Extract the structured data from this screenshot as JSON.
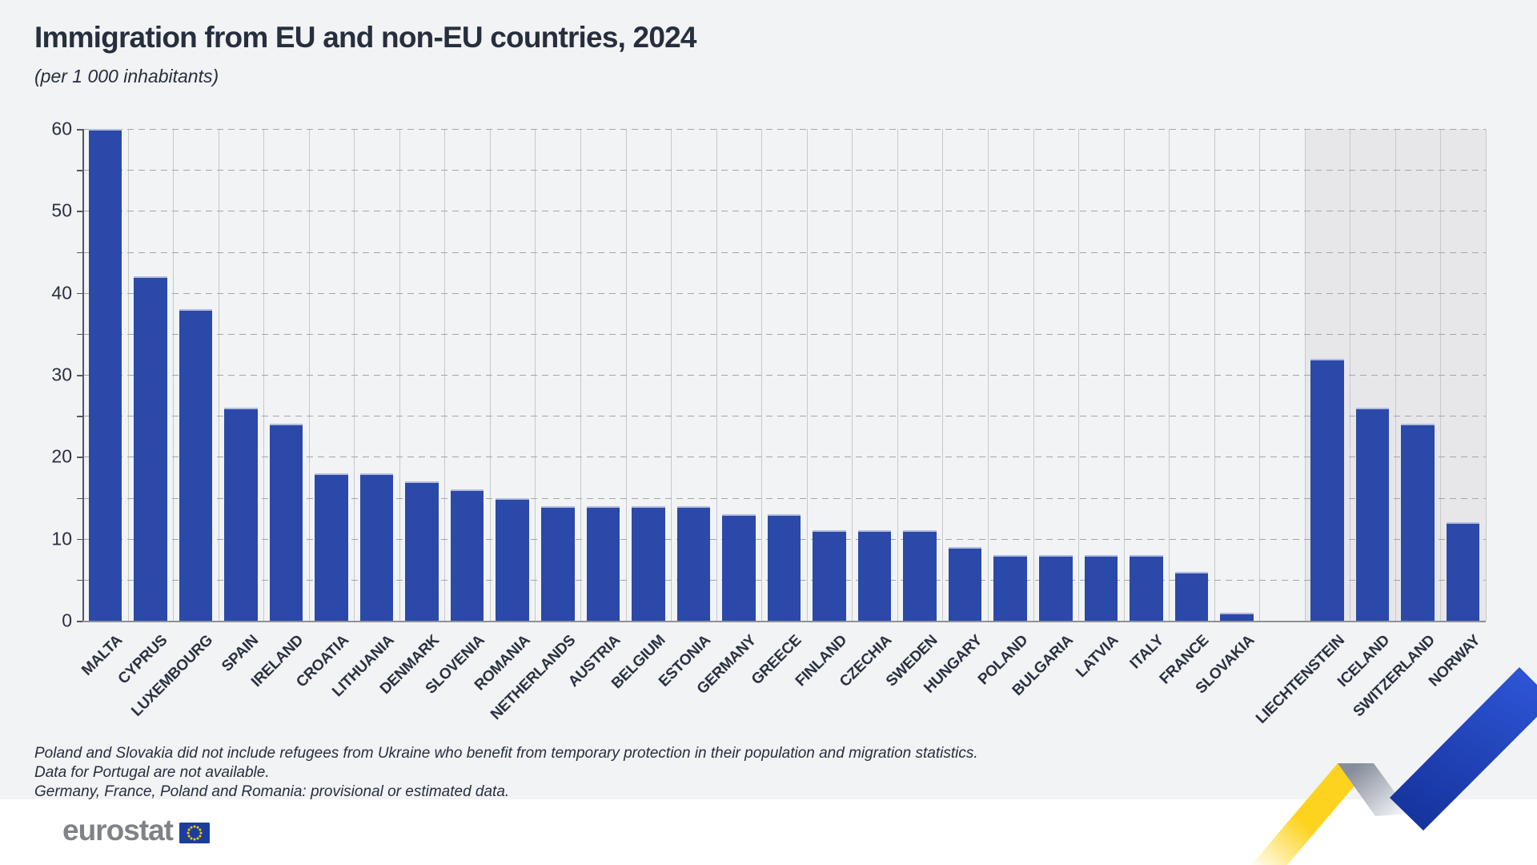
{
  "title": "Immigration from EU and non-EU countries, 2024",
  "subtitle": "(per 1 000 inhabitants)",
  "chart_data": {
    "type": "bar",
    "title": "Immigration from EU and non-EU countries, 2024",
    "subtitle": "(per 1 000 inhabitants)",
    "xlabel": "",
    "ylabel": "",
    "ylim": [
      0,
      60
    ],
    "ytick_step": 10,
    "minor_grid_step": 5,
    "grid": "dashed horizontal every 5, solid vertical per category",
    "legend": "none",
    "bar_color": "#2b49a8",
    "highlight_band_color": "#e7e7ea",
    "highlight_band_group": "efta",
    "spacer_after_index": 25,
    "bars": [
      {
        "label": "MALTA",
        "value": 60,
        "group": "eu"
      },
      {
        "label": "CYPRUS",
        "value": 42,
        "group": "eu"
      },
      {
        "label": "LUXEMBOURG",
        "value": 38,
        "group": "eu"
      },
      {
        "label": "SPAIN",
        "value": 26,
        "group": "eu"
      },
      {
        "label": "IRELAND",
        "value": 24,
        "group": "eu"
      },
      {
        "label": "CROATIA",
        "value": 18,
        "group": "eu"
      },
      {
        "label": "LITHUANIA",
        "value": 18,
        "group": "eu"
      },
      {
        "label": "DENMARK",
        "value": 17,
        "group": "eu"
      },
      {
        "label": "SLOVENIA",
        "value": 16,
        "group": "eu"
      },
      {
        "label": "ROMANIA",
        "value": 15,
        "group": "eu"
      },
      {
        "label": "NETHERLANDS",
        "value": 14,
        "group": "eu"
      },
      {
        "label": "AUSTRIA",
        "value": 14,
        "group": "eu"
      },
      {
        "label": "BELGIUM",
        "value": 14,
        "group": "eu"
      },
      {
        "label": "ESTONIA",
        "value": 14,
        "group": "eu"
      },
      {
        "label": "GERMANY",
        "value": 13,
        "group": "eu"
      },
      {
        "label": "GREECE",
        "value": 13,
        "group": "eu"
      },
      {
        "label": "FINLAND",
        "value": 11,
        "group": "eu"
      },
      {
        "label": "CZECHIA",
        "value": 11,
        "group": "eu"
      },
      {
        "label": "SWEDEN",
        "value": 11,
        "group": "eu"
      },
      {
        "label": "HUNGARY",
        "value": 9,
        "group": "eu"
      },
      {
        "label": "POLAND",
        "value": 8,
        "group": "eu"
      },
      {
        "label": "BULGARIA",
        "value": 8,
        "group": "eu"
      },
      {
        "label": "LATVIA",
        "value": 8,
        "group": "eu"
      },
      {
        "label": "ITALY",
        "value": 8,
        "group": "eu"
      },
      {
        "label": "FRANCE",
        "value": 6,
        "group": "eu"
      },
      {
        "label": "SLOVAKIA",
        "value": 1,
        "group": "eu"
      },
      {
        "label": "LIECHTENSTEIN",
        "value": 32,
        "group": "efta"
      },
      {
        "label": "ICELAND",
        "value": 26,
        "group": "efta"
      },
      {
        "label": "SWITZERLAND",
        "value": 24,
        "group": "efta"
      },
      {
        "label": "NORWAY",
        "value": 12,
        "group": "efta"
      }
    ]
  },
  "footnotes": [
    "Poland and Slovakia did not include refugees from Ukraine who benefit from temporary protection in their population and migration statistics.",
    "Data for Portugal are not available.",
    "Germany, France, Poland and Romania: provisional or estimated data."
  ],
  "logo": {
    "brand": "eurostat"
  },
  "colors": {
    "panel_bg": "#f2f3f4",
    "page_bg": "#ffffff",
    "bar": "#2b49a8",
    "efta_band": "#e7e7ea",
    "text": "#272e3e",
    "gridline": "#a4a5ae",
    "category_line": "#c8c8cd",
    "axis": "#55565e",
    "logo_gray": "#7f8288",
    "flag_blue": "#1b3e9e",
    "flag_star": "#ffcc00",
    "ribbon_yellow": "#fed320",
    "ribbon_blue": "#2248c4",
    "ribbon_gray": "#9aa0ab"
  }
}
